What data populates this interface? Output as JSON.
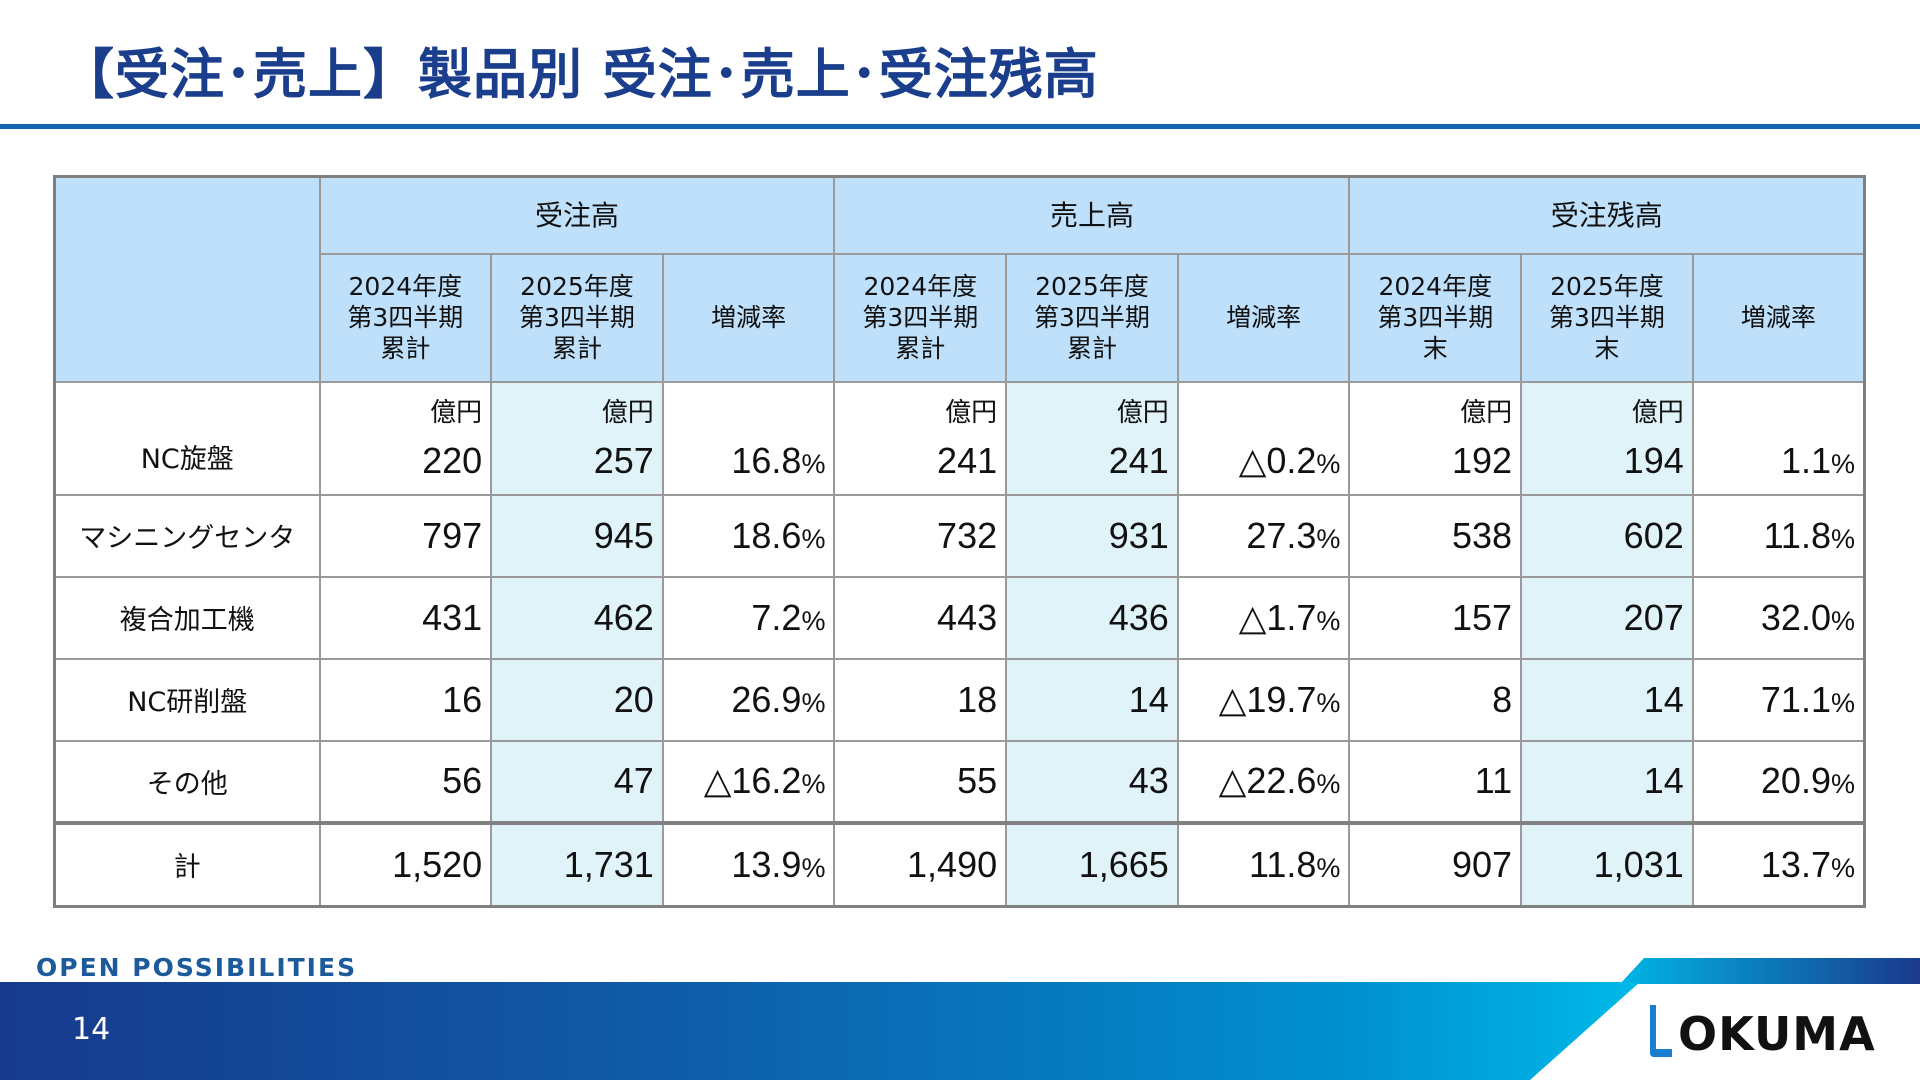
{
  "title": "【受注･売上】製品別 受注･売上･受注残高",
  "table": {
    "groups": [
      "受注高",
      "売上高",
      "受注残高"
    ],
    "sub": {
      "y2024_cum": "2024年度\n第3四半期\n累計",
      "y2025_cum": "2025年度\n第3四半期\n累計",
      "rate": "増減率",
      "y2024_end": "2024年度\n第3四半期\n末",
      "y2025_end": "2025年度\n第3四半期\n末"
    },
    "unit": "億円",
    "rows": [
      {
        "label": "NC旋盤",
        "v": [
          "220",
          "257",
          "16.8",
          "241",
          "241",
          "△0.2",
          "192",
          "194",
          "1.1"
        ]
      },
      {
        "label": "マシニングセンタ",
        "v": [
          "797",
          "945",
          "18.6",
          "732",
          "931",
          "27.3",
          "538",
          "602",
          "11.8"
        ]
      },
      {
        "label": "複合加工機",
        "v": [
          "431",
          "462",
          "7.2",
          "443",
          "436",
          "△1.7",
          "157",
          "207",
          "32.0"
        ]
      },
      {
        "label": "NC研削盤",
        "v": [
          "16",
          "20",
          "26.9",
          "18",
          "14",
          "△19.7",
          "8",
          "14",
          "71.1"
        ]
      },
      {
        "label": "その他",
        "v": [
          "56",
          "47",
          "△16.2",
          "55",
          "43",
          "△22.6",
          "11",
          "14",
          "20.9"
        ]
      }
    ],
    "total": {
      "label": "計",
      "v": [
        "1,520",
        "1,731",
        "13.9",
        "1,490",
        "1,665",
        "11.8",
        "907",
        "1,031",
        "13.7"
      ]
    },
    "pct": "%"
  },
  "footer": {
    "slogan": "OPEN POSSIBILITIES",
    "page": "14",
    "logo": "OKUMA"
  }
}
